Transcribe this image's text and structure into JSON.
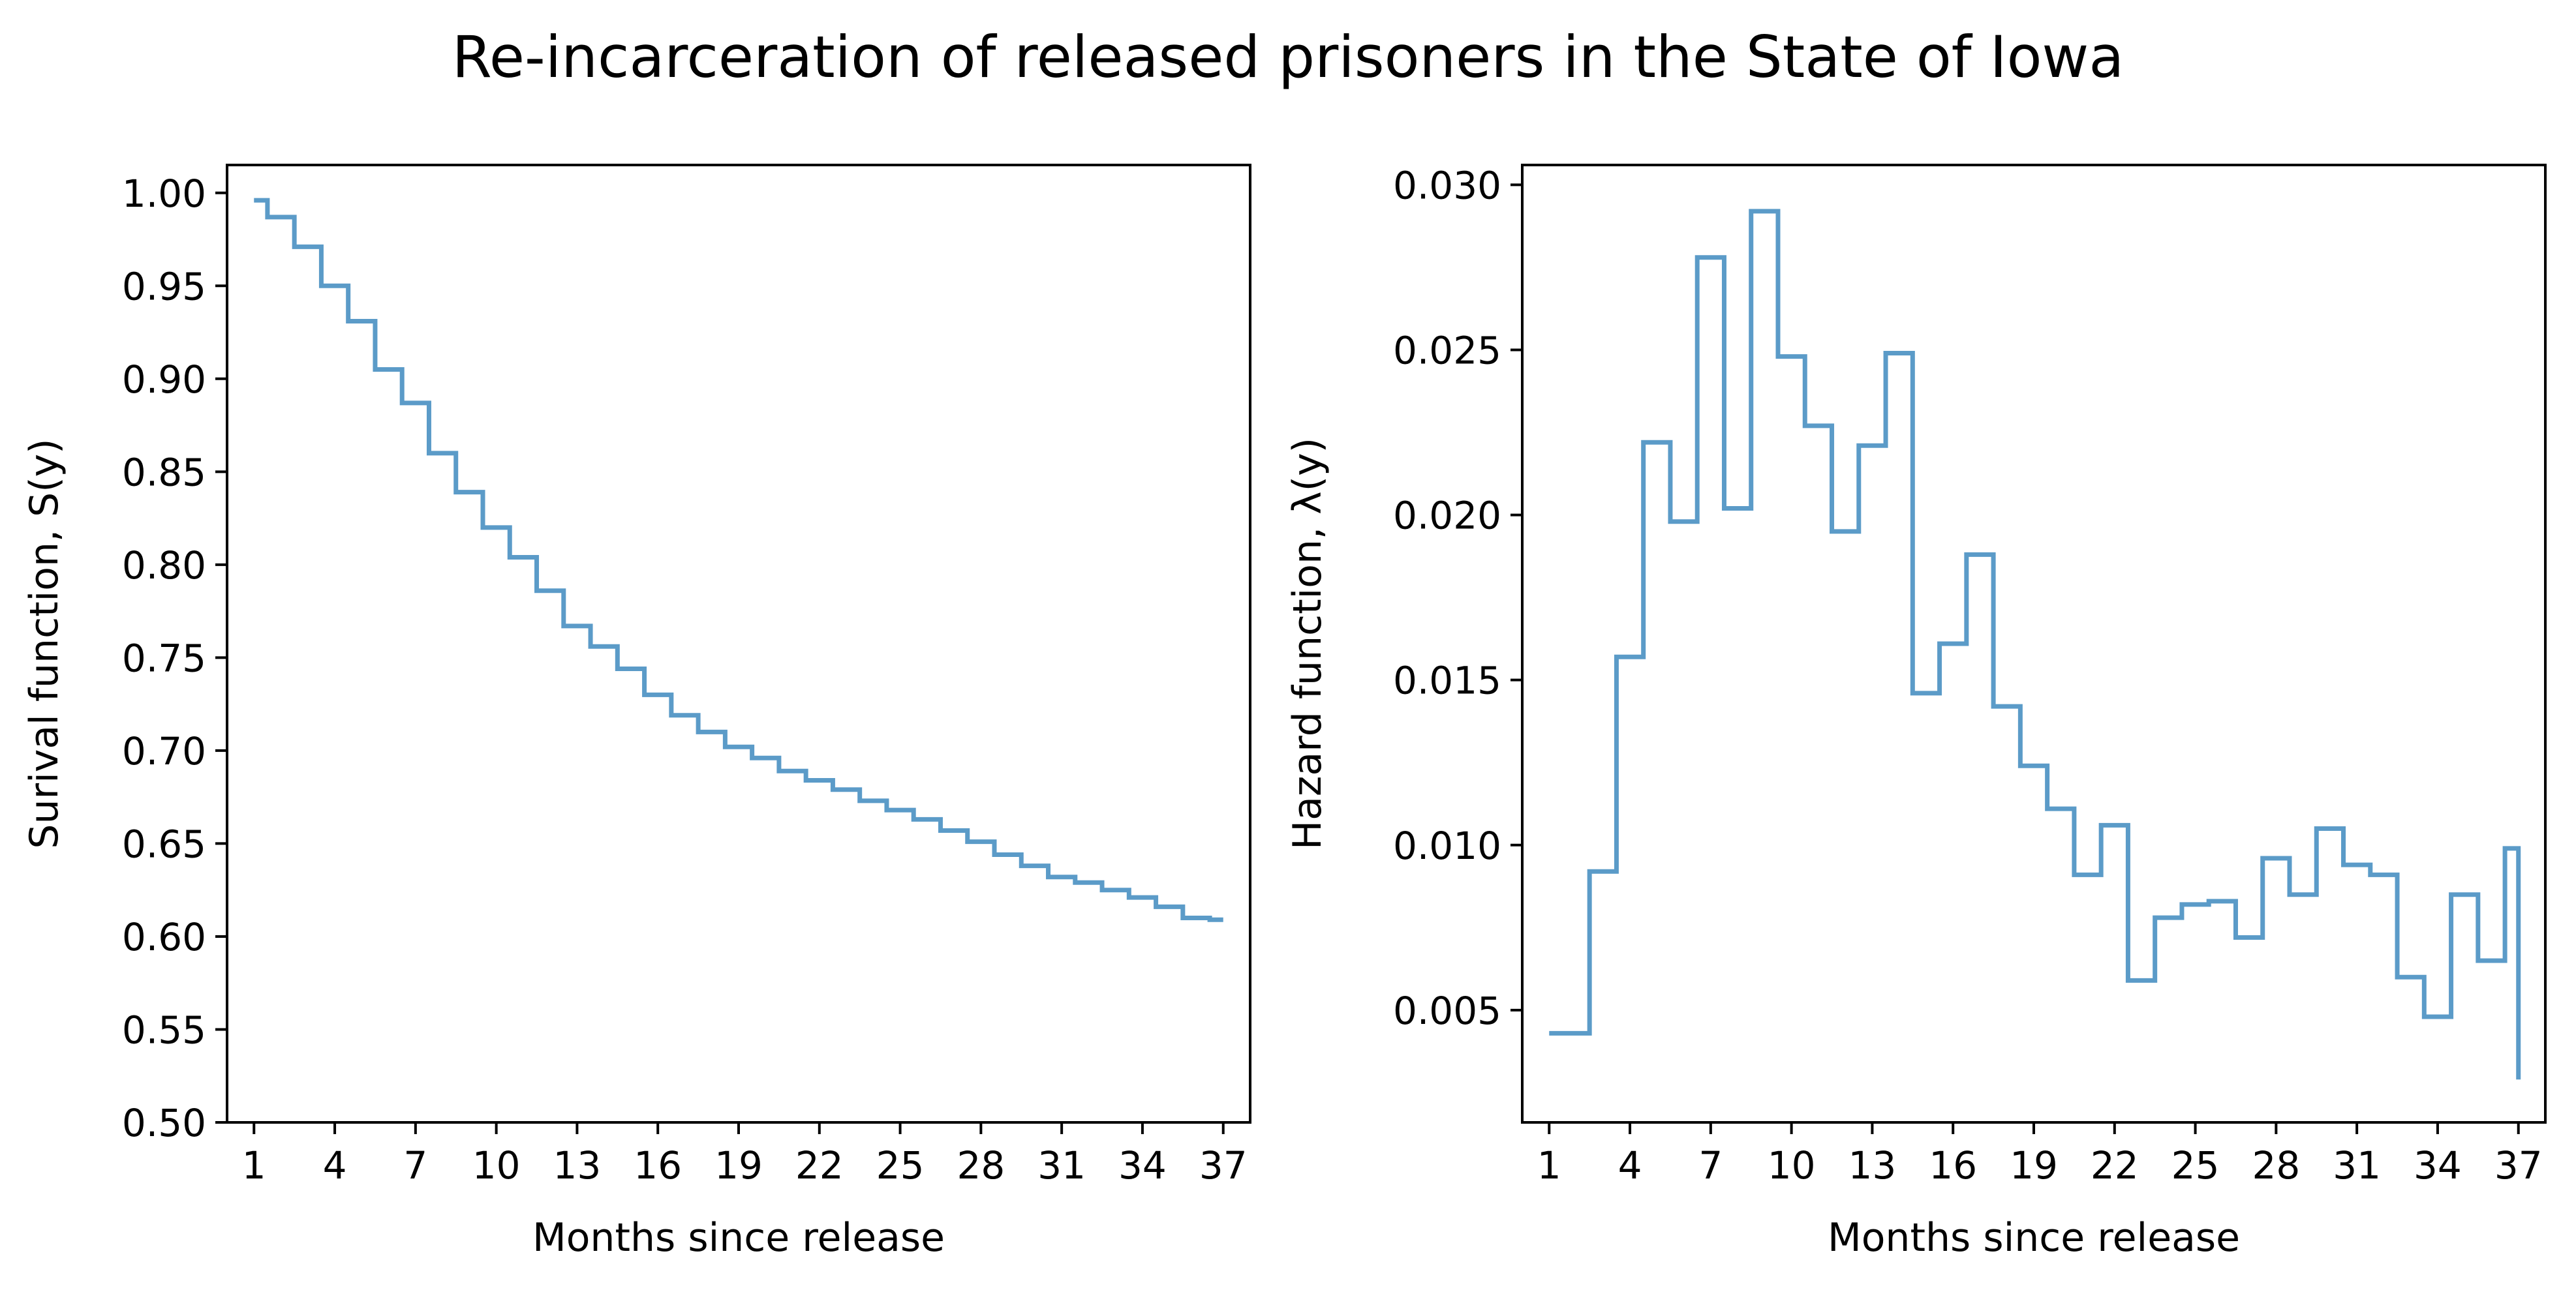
{
  "figure": {
    "title": "Re-incarceration of released prisoners in the State of Iowa",
    "line_color": "#5b9bc8"
  },
  "chart_data": [
    {
      "type": "line",
      "drawstyle": "steps-mid",
      "xlabel": "Months since release",
      "ylabel": "Surival function, S(y)",
      "xlim": [
        0,
        38
      ],
      "ylim": [
        0.5,
        1.015
      ],
      "xticks": [
        "1",
        "4",
        "7",
        "10",
        "13",
        "16",
        "19",
        "22",
        "25",
        "28",
        "31",
        "34",
        "37"
      ],
      "yticks": [
        "0.50",
        "0.55",
        "0.60",
        "0.65",
        "0.70",
        "0.75",
        "0.80",
        "0.85",
        "0.90",
        "0.95",
        "1.00"
      ],
      "grid": false,
      "series": [
        {
          "x": [
            1,
            2,
            3,
            4,
            5,
            6,
            7,
            8,
            9,
            10,
            11,
            12,
            13,
            14,
            15,
            16,
            17,
            18,
            19,
            20,
            21,
            22,
            23,
            24,
            25,
            26,
            27,
            28,
            29,
            30,
            31,
            32,
            33,
            34,
            35,
            36,
            37
          ],
          "values": [
            0.996,
            0.987,
            0.971,
            0.95,
            0.931,
            0.905,
            0.887,
            0.86,
            0.839,
            0.82,
            0.804,
            0.786,
            0.767,
            0.756,
            0.744,
            0.73,
            0.719,
            0.71,
            0.702,
            0.696,
            0.689,
            0.684,
            0.679,
            0.673,
            0.668,
            0.663,
            0.657,
            0.651,
            0.644,
            0.638,
            0.632,
            0.629,
            0.625,
            0.621,
            0.616,
            0.61,
            0.609
          ]
        }
      ]
    },
    {
      "type": "line",
      "drawstyle": "steps-mid",
      "xlabel": "Months since release",
      "ylabel": "Hazard function, λ(y)",
      "xlim": [
        0,
        38
      ],
      "ylim": [
        0.0016,
        0.0306
      ],
      "xticks": [
        "1",
        "4",
        "7",
        "10",
        "13",
        "16",
        "19",
        "22",
        "25",
        "28",
        "31",
        "34",
        "37"
      ],
      "yticks": [
        "0.005",
        "0.010",
        "0.015",
        "0.020",
        "0.025",
        "0.030"
      ],
      "grid": false,
      "series": [
        {
          "x": [
            1,
            2,
            3,
            4,
            5,
            6,
            7,
            8,
            9,
            10,
            11,
            12,
            13,
            14,
            15,
            16,
            17,
            18,
            19,
            20,
            21,
            22,
            23,
            24,
            25,
            26,
            27,
            28,
            29,
            30,
            31,
            32,
            33,
            34,
            35,
            36,
            37
          ],
          "values": [
            0.0043,
            0.0043,
            0.0092,
            0.0157,
            0.0222,
            0.0198,
            0.0278,
            0.0202,
            0.0292,
            0.0248,
            0.0227,
            0.0195,
            0.0221,
            0.0249,
            0.0146,
            0.0161,
            0.0188,
            0.0142,
            0.0124,
            0.0111,
            0.0091,
            0.0106,
            0.0059,
            0.0078,
            0.0082,
            0.0083,
            0.0072,
            0.0096,
            0.0085,
            0.0105,
            0.0094,
            0.0091,
            0.006,
            0.0048,
            0.0085,
            0.0065,
            0.0099
          ]
        }
      ]
    }
  ]
}
